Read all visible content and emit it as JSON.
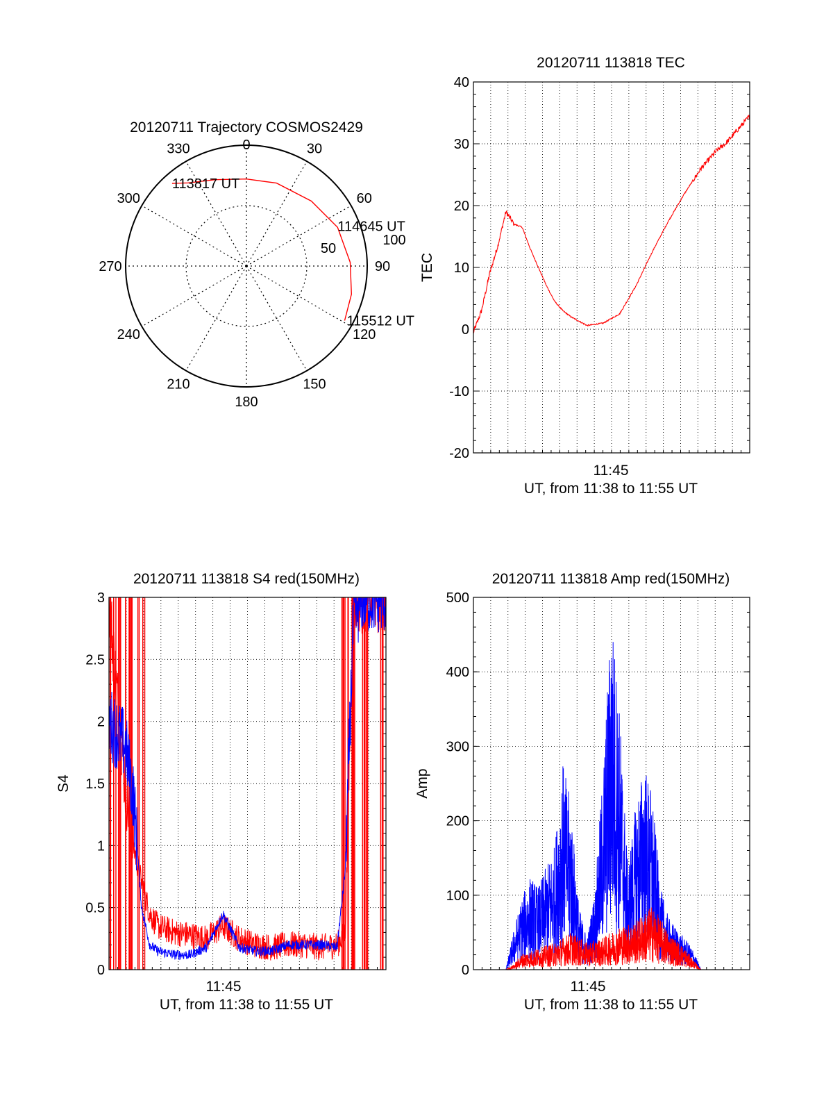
{
  "colors": {
    "red": "#ff0000",
    "blue": "#0000ff",
    "grid": "#000000",
    "background": "#ffffff"
  },
  "chart_data": [
    {
      "type": "polar",
      "title": "20120711 Trajectory COSMOS2429",
      "angle_labels": [
        "0",
        "30",
        "60",
        "90",
        "120",
        "150",
        "180",
        "210",
        "240",
        "270",
        "300",
        "330"
      ],
      "radius_labels": [
        "50",
        "100"
      ],
      "radius_range": [
        0,
        100
      ],
      "grid": true,
      "trajectory": {
        "color": "#ff0000",
        "points": [
          {
            "azimuth": 318,
            "radius": 92
          },
          {
            "azimuth": 325,
            "radius": 84
          },
          {
            "azimuth": 340,
            "radius": 76
          },
          {
            "azimuth": 0,
            "radius": 72
          },
          {
            "azimuth": 20,
            "radius": 73
          },
          {
            "azimuth": 45,
            "radius": 76
          },
          {
            "azimuth": 67,
            "radius": 82
          },
          {
            "azimuth": 88,
            "radius": 86
          },
          {
            "azimuth": 105,
            "radius": 90
          },
          {
            "azimuth": 119,
            "radius": 93
          }
        ]
      },
      "annotations": [
        {
          "text": "113817 UT",
          "azimuth": 318,
          "radius": 92
        },
        {
          "text": "114645 UT",
          "azimuth": 67,
          "radius": 82
        },
        {
          "text": "115512 UT",
          "azimuth": 119,
          "radius": 93
        }
      ]
    },
    {
      "type": "line",
      "title": "20120711 113818 TEC",
      "xlabel": "UT, from 11:38 to 11:55 UT",
      "ylabel": "TEC",
      "xtick_labels": [
        "11:45"
      ],
      "xlim_minutes": [
        11.38,
        11.55
      ],
      "ylim": [
        -20,
        40
      ],
      "yticks": [
        -20,
        -10,
        0,
        10,
        20,
        30,
        40
      ],
      "grid": true,
      "series": [
        {
          "color": "#ff0000",
          "x_minutes": [
            11.38,
            11.385,
            11.39,
            11.395,
            11.4,
            11.405,
            11.41,
            11.415,
            11.42,
            11.425,
            11.43,
            11.435,
            11.44,
            11.45,
            11.46,
            11.47,
            11.48,
            11.49,
            11.5,
            11.51,
            11.52,
            11.525,
            11.53,
            11.535,
            11.54,
            11.545,
            11.55
          ],
          "values": [
            -0.5,
            6,
            11,
            15,
            19,
            17,
            16.5,
            14,
            11,
            8,
            6,
            4,
            2.5,
            0.7,
            1.2,
            3,
            8,
            13,
            17.5,
            23,
            27,
            28.5,
            30,
            31,
            33,
            35,
            36
          ],
          "yvalues_override": [
            -0.5,
            3,
            9,
            13.5,
            19,
            17,
            16.5,
            13,
            10,
            7,
            4.5,
            3,
            2,
            0.6,
            1,
            2.5,
            7,
            12.5,
            17.5,
            22,
            26,
            27.5,
            29,
            30,
            31.5,
            33,
            34.5
          ]
        }
      ]
    },
    {
      "type": "line",
      "title": "20120711 113818 S4 red(150MHz)",
      "xlabel": "UT, from 11:38 to 11:55 UT",
      "ylabel": "S4",
      "xtick_labels": [
        "11:45"
      ],
      "ylim": [
        0,
        3
      ],
      "yticks": [
        "0",
        "0.5",
        "1",
        "1.5",
        "2",
        "2.5",
        "3"
      ],
      "grid": true,
      "series": [
        {
          "color": "#ff0000",
          "x_minutes": [
            11.38,
            11.385,
            11.39,
            11.395,
            11.4,
            11.405,
            11.41,
            11.42,
            11.43,
            11.44,
            11.45,
            11.46,
            11.47,
            11.48,
            11.49,
            11.5,
            11.51,
            11.52,
            11.525,
            11.53,
            11.535,
            11.54,
            11.545,
            11.55
          ],
          "values": [
            3,
            2.2,
            1.5,
            1.0,
            0.7,
            0.45,
            0.35,
            0.3,
            0.28,
            0.25,
            0.35,
            0.25,
            0.2,
            0.18,
            0.2,
            0.2,
            0.18,
            0.2,
            0.3,
            3,
            3,
            3,
            3,
            3
          ]
        },
        {
          "color": "#0000ff",
          "x_minutes": [
            11.38,
            11.385,
            11.39,
            11.395,
            11.4,
            11.405,
            11.41,
            11.42,
            11.43,
            11.44,
            11.45,
            11.46,
            11.47,
            11.48,
            11.49,
            11.5,
            11.51,
            11.52,
            11.525,
            11.53,
            11.535,
            11.54,
            11.545,
            11.55
          ],
          "values": [
            2.0,
            1.9,
            1.8,
            1.4,
            0.5,
            0.2,
            0.15,
            0.12,
            0.12,
            0.18,
            0.45,
            0.18,
            0.15,
            0.15,
            0.2,
            0.2,
            0.2,
            0.18,
            0.8,
            2.8,
            3,
            3,
            3,
            3
          ]
        }
      ]
    },
    {
      "type": "line",
      "title": "20120711 113818 Amp red(150MHz)",
      "xlabel": "UT, from 11:38 to 11:55 UT",
      "ylabel": "Amp",
      "xtick_labels": [
        "11:45"
      ],
      "ylim": [
        0,
        500
      ],
      "yticks": [
        "0",
        "100",
        "200",
        "300",
        "400",
        "500"
      ],
      "grid": true,
      "series": [
        {
          "color": "#ff0000",
          "x_minutes": [
            11.38,
            11.4,
            11.405,
            11.41,
            11.42,
            11.43,
            11.44,
            11.45,
            11.46,
            11.47,
            11.48,
            11.49,
            11.5,
            11.51,
            11.515,
            11.52,
            11.55
          ],
          "values": [
            0,
            0,
            5,
            15,
            20,
            25,
            35,
            25,
            30,
            40,
            45,
            60,
            35,
            20,
            10,
            0,
            0
          ]
        },
        {
          "color": "#0000ff",
          "x_minutes": [
            11.38,
            11.4,
            11.405,
            11.41,
            11.415,
            11.42,
            11.425,
            11.43,
            11.435,
            11.44,
            11.445,
            11.45,
            11.455,
            11.46,
            11.465,
            11.47,
            11.475,
            11.48,
            11.485,
            11.49,
            11.495,
            11.5,
            11.505,
            11.51,
            11.515,
            11.52,
            11.55
          ],
          "values": [
            0,
            0,
            40,
            70,
            90,
            80,
            100,
            120,
            200,
            160,
            60,
            30,
            80,
            200,
            350,
            250,
            100,
            160,
            200,
            170,
            80,
            50,
            40,
            30,
            20,
            0,
            0
          ]
        }
      ]
    }
  ]
}
